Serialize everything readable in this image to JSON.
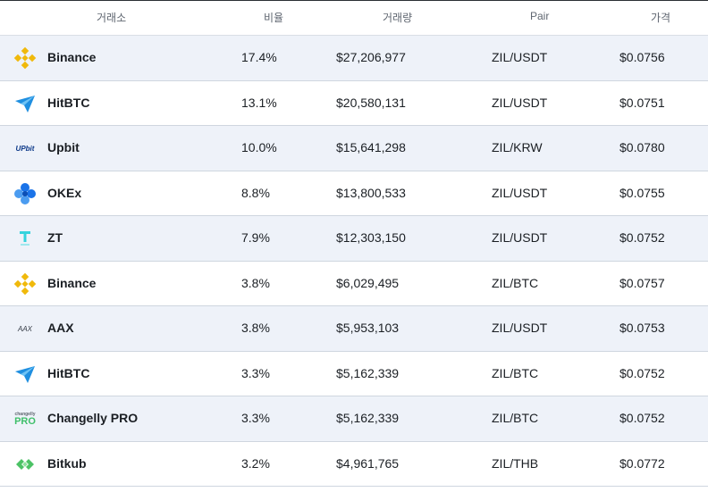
{
  "header": {
    "exchange": "거래소",
    "share": "비율",
    "volume": "거래량",
    "pair": "Pair",
    "price": "가격"
  },
  "rows": [
    {
      "exchange": "Binance",
      "logo": "binance-logo-icon",
      "share": "17.4%",
      "volume": "$27,206,977",
      "pair": "ZIL/USDT",
      "price": "$0.0756"
    },
    {
      "exchange": "HitBTC",
      "logo": "hitbtc-logo-icon",
      "share": "13.1%",
      "volume": "$20,580,131",
      "pair": "ZIL/USDT",
      "price": "$0.0751"
    },
    {
      "exchange": "Upbit",
      "logo": "upbit-logo-icon",
      "logo_text": "UPbit",
      "share": "10.0%",
      "volume": "$15,641,298",
      "pair": "ZIL/KRW",
      "price": "$0.0780"
    },
    {
      "exchange": "OKEx",
      "logo": "okex-logo-icon",
      "share": "8.8%",
      "volume": "$13,800,533",
      "pair": "ZIL/USDT",
      "price": "$0.0755"
    },
    {
      "exchange": "ZT",
      "logo": "zt-logo-icon",
      "share": "7.9%",
      "volume": "$12,303,150",
      "pair": "ZIL/USDT",
      "price": "$0.0752"
    },
    {
      "exchange": "Binance",
      "logo": "binance-logo-icon",
      "share": "3.8%",
      "volume": "$6,029,495",
      "pair": "ZIL/BTC",
      "price": "$0.0757"
    },
    {
      "exchange": "AAX",
      "logo": "aax-logo-icon",
      "logo_text": "AAX",
      "share": "3.8%",
      "volume": "$5,953,103",
      "pair": "ZIL/USDT",
      "price": "$0.0753"
    },
    {
      "exchange": "HitBTC",
      "logo": "hitbtc-logo-icon",
      "share": "3.3%",
      "volume": "$5,162,339",
      "pair": "ZIL/BTC",
      "price": "$0.0752"
    },
    {
      "exchange": "Changelly PRO",
      "logo": "changelly-pro-logo-icon",
      "logo_text_top": "changelly",
      "logo_text": "PRO",
      "share": "3.3%",
      "volume": "$5,162,339",
      "pair": "ZIL/BTC",
      "price": "$0.0752"
    },
    {
      "exchange": "Bitkub",
      "logo": "bitkub-logo-icon",
      "share": "3.2%",
      "volume": "$4,961,765",
      "pair": "ZIL/THB",
      "price": "$0.0772"
    }
  ],
  "colors": {
    "binance": "#f0b90b",
    "hitbtc": "#1f8fe0",
    "upbit": "#093687",
    "okex": "#1a73e8",
    "zt": "#35d3dd",
    "changelly": "#3fbf6a",
    "bitkub": "#4cc265",
    "alt_row": "#eef2f9"
  }
}
